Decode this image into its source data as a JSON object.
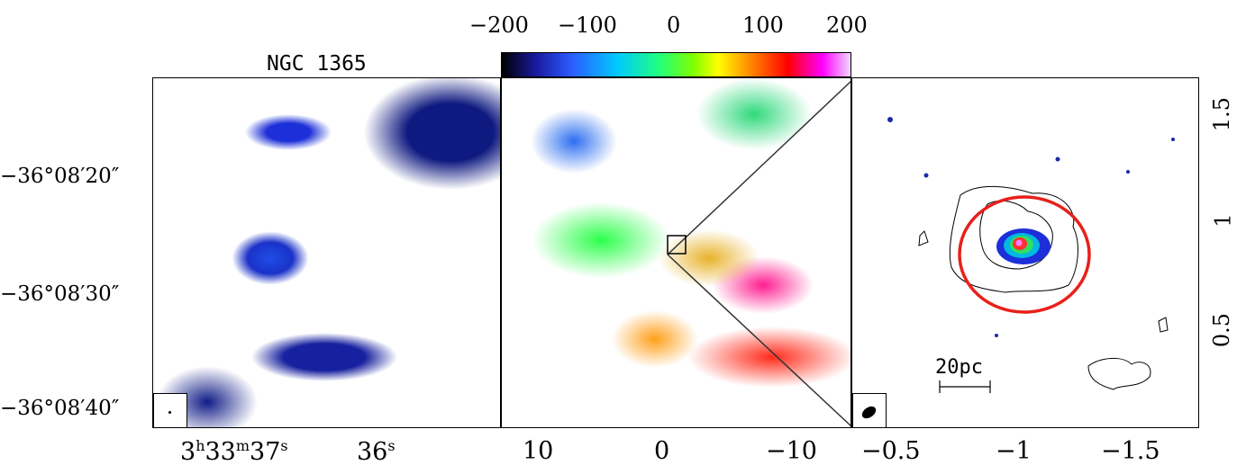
{
  "colorbar": {
    "ticks": [
      "−200",
      "−100",
      "0",
      "100",
      "200"
    ],
    "colors": [
      "#000000",
      "#1a1aa0",
      "#2b5cff",
      "#00c8ff",
      "#20ff80",
      "#7fff00",
      "#ffff00",
      "#ff8000",
      "#ff0000",
      "#ff00ff",
      "#f0d8ff"
    ]
  },
  "panel_left": {
    "title": "NGC 1365",
    "dec_labels": [
      "−36°08′20″",
      "−36°08′30″",
      "−36°08′40″"
    ],
    "ra_label_main": "3",
    "ra_h": "h",
    "ra_mid": "33",
    "ra_m": "m",
    "ra_end": "37",
    "ra_s": "s",
    "ra_label_2": "36",
    "ra_s2": "s"
  },
  "panel_middle": {
    "x_ticks": [
      "10",
      "0",
      "−10"
    ]
  },
  "panel_right": {
    "x_ticks": [
      "−0.5",
      "−1",
      "−1.5"
    ],
    "y_ticks": [
      "1.5",
      "1",
      "0.5"
    ],
    "scalebar_label": "20pc",
    "circle_color": "#e8201a"
  }
}
